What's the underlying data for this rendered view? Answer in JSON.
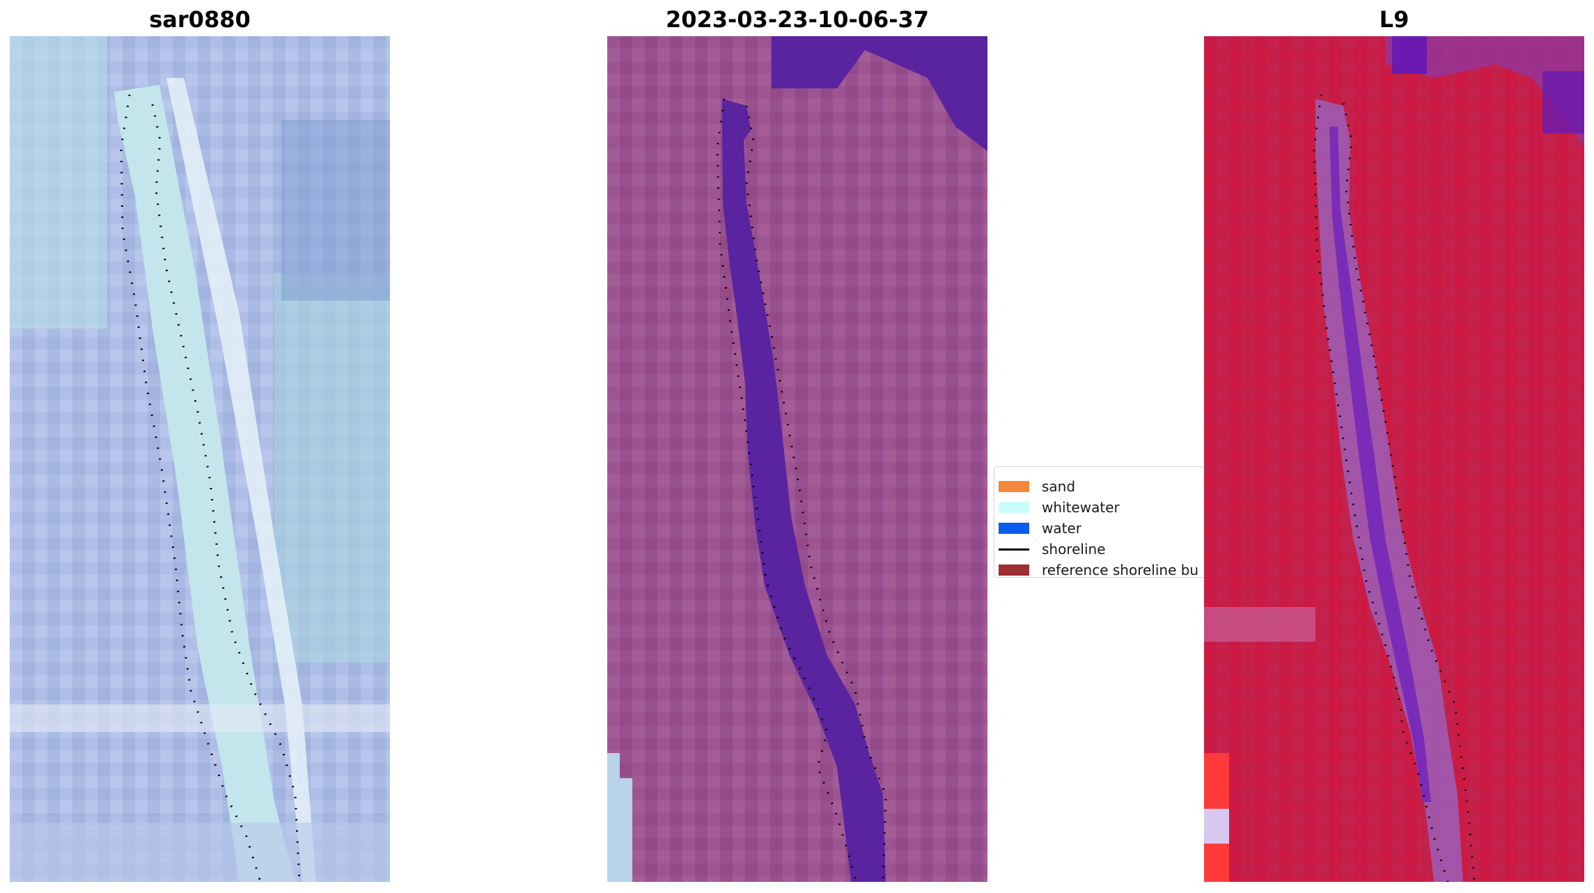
{
  "panels": [
    {
      "title": "sar0880"
    },
    {
      "title": "2023-03-23-10-06-37"
    },
    {
      "title": "L9"
    }
  ],
  "legend": {
    "items": [
      {
        "label": "sand",
        "color": "#f5873a"
      },
      {
        "label": "whitewater",
        "color": "#c8fcfc"
      },
      {
        "label": "water",
        "color": "#0a5cf0"
      },
      {
        "label": "shoreline",
        "color": "#000000"
      },
      {
        "label": "reference shoreline bu",
        "color": "#9c2f32"
      }
    ]
  },
  "colors": {
    "sar_base": "#a7b8e2",
    "sar_water": "#bfe3ea",
    "classified_base": "#9a4f8c",
    "classified_water": "#5a23a0",
    "ndwi_base": "#c91d48",
    "ndwi_water": "#9b5fb8",
    "dotted_shoreline": "#000000"
  }
}
